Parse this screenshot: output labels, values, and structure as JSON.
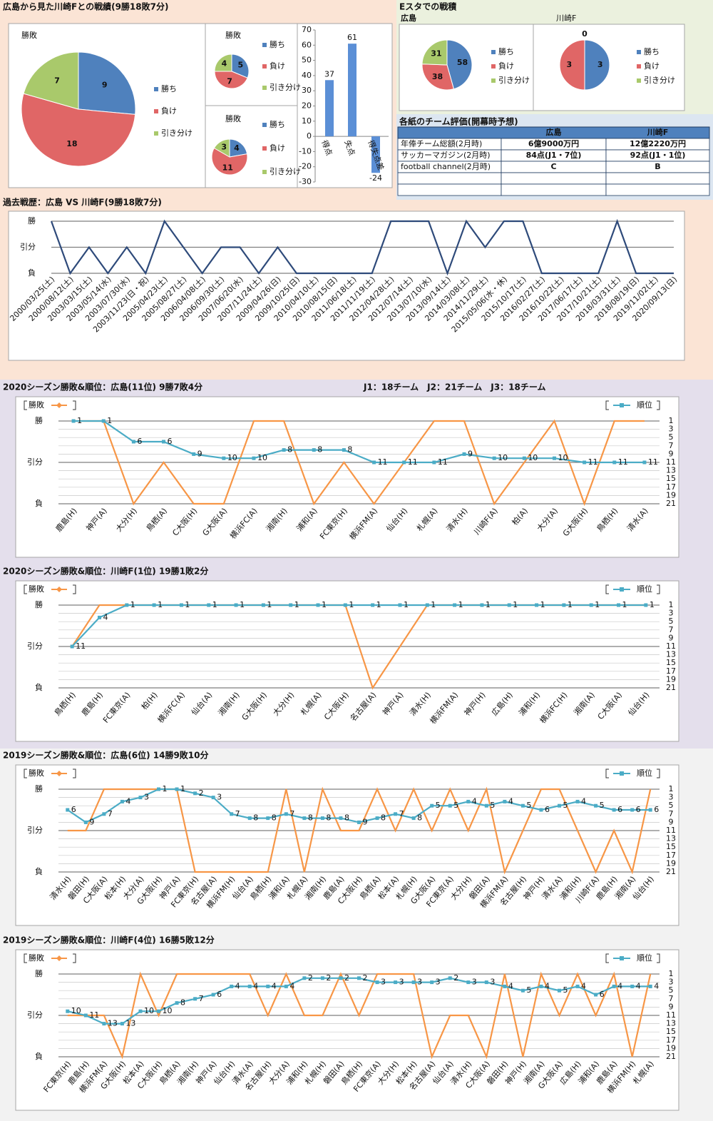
{
  "chart_data": [
    {
      "type": "pie",
      "title": "広島から見た川崎Fとの戦績(9勝18敗7分)",
      "subtitle": "勝敗",
      "categories": [
        "勝ち",
        "負け",
        "引き分け"
      ],
      "values": [
        9,
        18,
        7
      ],
      "colors": [
        "#4f81bd",
        "#e06666",
        "#a9c96b"
      ]
    },
    {
      "type": "pie",
      "subtitle": "勝敗",
      "categories": [
        "勝ち",
        "負け",
        "引き分け"
      ],
      "values": [
        5,
        7,
        4
      ],
      "colors": [
        "#4f81bd",
        "#e06666",
        "#a9c96b"
      ]
    },
    {
      "type": "pie",
      "subtitle": "勝敗",
      "categories": [
        "勝ち",
        "負け",
        "引き分け"
      ],
      "values": [
        4,
        11,
        3
      ],
      "colors": [
        "#4f81bd",
        "#e06666",
        "#a9c96b"
      ]
    },
    {
      "type": "bar",
      "categories": [
        "得点",
        "失点",
        "得失点差"
      ],
      "values": [
        37,
        61,
        -24
      ],
      "color": "#5b8fd6",
      "ylim": [
        -30,
        70
      ],
      "yticks": [
        -30,
        -20,
        -10,
        0,
        10,
        20,
        30,
        40,
        50,
        60,
        70
      ]
    },
    {
      "type": "pie",
      "title": "Eスタでの戦積",
      "subtitle": "広島",
      "categories": [
        "勝ち",
        "負け",
        "引き分け"
      ],
      "values": [
        58,
        38,
        31
      ],
      "colors": [
        "#4f81bd",
        "#e06666",
        "#a9c96b"
      ]
    },
    {
      "type": "pie",
      "subtitle": "川崎F",
      "categories": [
        "勝ち",
        "負け",
        "引き分け"
      ],
      "values": [
        3,
        3,
        0
      ],
      "colors": [
        "#4f81bd",
        "#e06666",
        "#a9c96b"
      ]
    },
    {
      "type": "table",
      "title": "各紙のチーム評価(開幕時予想)",
      "header": [
        "広島",
        "川崎F"
      ],
      "rows": [
        [
          "年俸チーム総額(2月時)",
          "6億9000万円",
          "12億2220万円"
        ],
        [
          "サッカーマガジン(2月時)",
          "84点(J1・7位)",
          "92点(J1・1位)"
        ],
        [
          "football channel(2月時)",
          "C",
          "B"
        ]
      ]
    },
    {
      "type": "line",
      "title": "過去戦歴：広島 VS 川崎F(9勝18敗7分)",
      "color": "#2e4a7a",
      "categories": [
        "2000/03/25(土)",
        "2000/08/12(土)",
        "2003/03/15(土)",
        "2003/05/14(水)",
        "2003/07/30(水)",
        "2003/11/23(日・祝)",
        "2005/04/23(土)",
        "2005/08/27(土)",
        "2006/04/08(土)",
        "2006/09/30(土)",
        "2007/06/20(水)",
        "2007/11/24(土)",
        "2009/04/26(日)",
        "2009/10/25(日)",
        "2010/04/10(土)",
        "2010/08/15(日)",
        "2011/06/18(土)",
        "2011/11/19(土)",
        "2012/04/28(土)",
        "2012/07/14(土)",
        "2013/07/10(水)",
        "2013/09/14(土)",
        "2014/03/08(土)",
        "2014/11/29(土)",
        "2015/05/06(水・休)",
        "2015/10/17(土)",
        "2016/02/27(土)",
        "2016/10/22(土)",
        "2017/06/17(土)",
        "2017/10/21(土)",
        "2018/03/31(土)",
        "2018/08/19(日)",
        "2019/11/02(土)",
        "2020/09/13(日)"
      ],
      "values": [
        2,
        0,
        1,
        0,
        1,
        0,
        2,
        1,
        0,
        1,
        1,
        0,
        1,
        0,
        0,
        0,
        0,
        0,
        2,
        2,
        2,
        0,
        2,
        1,
        2,
        2,
        0,
        0,
        0,
        0,
        2,
        0,
        0,
        0
      ],
      "ylim": [
        0,
        2
      ],
      "yticks": [
        {
          "value": 0,
          "label": "負"
        },
        {
          "value": 1,
          "label": "引分"
        },
        {
          "value": 2,
          "label": "勝"
        }
      ]
    },
    {
      "type": "line",
      "title": "2020シーズン勝敗&順位：広島(11位) 9勝7敗4分",
      "annotation": "J1：18チーム　J2：21チーム　J3：18チーム",
      "categories": [
        "鹿島(H)",
        "神戸(A)",
        "大分(H)",
        "鳥栖(A)",
        "C大阪(H)",
        "G大阪(A)",
        "横浜FC(A)",
        "湘南(H)",
        "浦和(A)",
        "FC東京(H)",
        "横浜FM(A)",
        "仙台(H)",
        "札幌(A)",
        "清水(H)",
        "川崎F(A)",
        "柏(A)",
        "大分(A)",
        "G大阪(H)",
        "鳥栖(H)",
        "清水(A)"
      ],
      "series": [
        {
          "name": "勝敗",
          "color": "#f79646",
          "values": [
            2,
            2,
            0,
            1,
            0,
            0,
            2,
            2,
            0,
            1,
            0,
            1,
            2,
            2,
            0,
            1,
            2,
            0,
            2,
            2
          ]
        },
        {
          "name": "順位",
          "color": "#4bacc6",
          "axis": "y2",
          "values": [
            1,
            1,
            6,
            6,
            9,
            10,
            10,
            8,
            8,
            8,
            11,
            11,
            11,
            9,
            10,
            10,
            10,
            11,
            11,
            11
          ]
        }
      ],
      "ylim": [
        0,
        2
      ],
      "yticks": [
        {
          "value": 0,
          "label": "負"
        },
        {
          "value": 1,
          "label": "引分"
        },
        {
          "value": 2,
          "label": "勝"
        }
      ],
      "y2lim": [
        21,
        1
      ],
      "y2ticks": [
        1,
        3,
        5,
        7,
        9,
        11,
        13,
        15,
        17,
        19,
        21
      ]
    },
    {
      "type": "line",
      "title": "2020シーズン勝敗&順位：川崎F(1位) 19勝1敗2分",
      "categories": [
        "鳥栖(H)",
        "鹿島(H)",
        "FC東京(A)",
        "柏(H)",
        "横浜FC(A)",
        "仙台(A)",
        "湘南(H)",
        "G大阪(H)",
        "大分(H)",
        "札幌(A)",
        "C大阪(H)",
        "名古屋(A)",
        "神戸(A)",
        "清水(H)",
        "横浜FM(A)",
        "神戸(H)",
        "広島(H)",
        "浦和(H)",
        "横浜FC(H)",
        "湘南(A)",
        "C大阪(A)",
        "仙台(H)"
      ],
      "series": [
        {
          "name": "勝敗",
          "color": "#f79646",
          "values": [
            1,
            2,
            2,
            2,
            2,
            2,
            2,
            2,
            2,
            2,
            2,
            0,
            1,
            2,
            2,
            2,
            2,
            2,
            2,
            2,
            2,
            2
          ]
        },
        {
          "name": "順位",
          "color": "#4bacc6",
          "axis": "y2",
          "values": [
            11,
            4,
            1,
            1,
            1,
            1,
            1,
            1,
            1,
            1,
            1,
            1,
            1,
            1,
            1,
            1,
            1,
            1,
            1,
            1,
            1,
            1
          ]
        }
      ],
      "ylim": [
        0,
        2
      ],
      "yticks": [
        {
          "value": 0,
          "label": "負"
        },
        {
          "value": 1,
          "label": "引分"
        },
        {
          "value": 2,
          "label": "勝"
        }
      ],
      "y2lim": [
        21,
        1
      ],
      "y2ticks": [
        1,
        3,
        5,
        7,
        9,
        11,
        13,
        15,
        17,
        19,
        21
      ]
    },
    {
      "type": "line",
      "title": "2019シーズン勝敗&順位：広島(6位) 14勝9敗10分",
      "categories": [
        "清水(H)",
        "磐田(H)",
        "C大阪(A)",
        "松本(H)",
        "大分(A)",
        "G大阪(H)",
        "神戸(A)",
        "FC東京(H)",
        "名古屋(A)",
        "横浜FM(H)",
        "仙台(A)",
        "鳥栖(H)",
        "浦和(A)",
        "札幌(A)",
        "湘南(H)",
        "鹿島(A)",
        "C大阪(H)",
        "鳥栖(A)",
        "松本(A)",
        "札幌(H)",
        "G大阪(A)",
        "FC東京(A)",
        "大分(H)",
        "磐田(A)",
        "横浜FM(A)",
        "名古屋(H)",
        "神戸(H)",
        "清水(A)",
        "浦和(H)",
        "川崎F(A)",
        "鹿島(H)",
        "湘南(A)",
        "仙台(H)"
      ],
      "series": [
        {
          "name": "勝敗",
          "color": "#f79646",
          "values": [
            1,
            1,
            2,
            2,
            2,
            2,
            2,
            0,
            0,
            0,
            0,
            0,
            2,
            0,
            2,
            1,
            1,
            2,
            1,
            2,
            1,
            2,
            1,
            2,
            0,
            1,
            2,
            2,
            1,
            0,
            1,
            0,
            2
          ]
        },
        {
          "name": "順位",
          "color": "#4bacc6",
          "axis": "y2",
          "values": [
            6,
            9,
            7,
            4,
            3,
            1,
            1,
            2,
            3,
            7,
            8,
            8,
            7,
            8,
            8,
            8,
            9,
            8,
            7,
            8,
            5,
            5,
            4,
            5,
            4,
            5,
            6,
            5,
            4,
            5,
            6,
            6,
            6
          ]
        }
      ],
      "ylim": [
        0,
        2
      ],
      "yticks": [
        {
          "value": 0,
          "label": "負"
        },
        {
          "value": 1,
          "label": "引分"
        },
        {
          "value": 2,
          "label": "勝"
        }
      ],
      "y2lim": [
        21,
        1
      ],
      "y2ticks": [
        1,
        3,
        5,
        7,
        9,
        11,
        13,
        15,
        17,
        19,
        21
      ]
    },
    {
      "type": "line",
      "title": "2019シーズン勝敗&順位：川崎F(4位) 16勝5敗12分",
      "categories": [
        "FC東京(H)",
        "鹿島(H)",
        "横浜FM(A)",
        "G大阪(H)",
        "松本(A)",
        "C大阪(H)",
        "鳥栖(A)",
        "湘南(H)",
        "神戸(A)",
        "仙台(H)",
        "清水(A)",
        "名古屋(H)",
        "大分(A)",
        "浦和(H)",
        "札幌(H)",
        "磐田(A)",
        "鳥栖(H)",
        "FC東京(A)",
        "大分(H)",
        "松本(H)",
        "名古屋(A)",
        "仙台(A)",
        "清水(H)",
        "C大阪(A)",
        "磐田(H)",
        "神戸(H)",
        "湘南(A)",
        "G大阪(A)",
        "広島(H)",
        "浦和(A)",
        "鹿島(A)",
        "横浜FM(H)",
        "札幌(A)"
      ],
      "series": [
        {
          "name": "勝敗",
          "color": "#f79646",
          "values": [
            1,
            1,
            1,
            0,
            2,
            1,
            2,
            2,
            2,
            2,
            2,
            1,
            2,
            1,
            1,
            2,
            1,
            2,
            2,
            2,
            0,
            1,
            1,
            0,
            2,
            0,
            2,
            1,
            2,
            1,
            2,
            0,
            2
          ]
        },
        {
          "name": "順位",
          "color": "#4bacc6",
          "axis": "y2",
          "values": [
            10,
            11,
            13,
            13,
            10,
            10,
            8,
            7,
            6,
            4,
            4,
            4,
            4,
            2,
            2,
            2,
            2,
            3,
            3,
            3,
            3,
            2,
            3,
            3,
            4,
            5,
            4,
            5,
            4,
            6,
            4,
            4,
            4
          ]
        }
      ],
      "ylim": [
        0,
        2
      ],
      "yticks": [
        {
          "value": 0,
          "label": "負"
        },
        {
          "value": 1,
          "label": "引分"
        },
        {
          "value": 2,
          "label": "勝"
        }
      ],
      "y2lim": [
        21,
        1
      ],
      "y2ticks": [
        1,
        3,
        5,
        7,
        9,
        11,
        13,
        15,
        17,
        19,
        21
      ]
    }
  ]
}
